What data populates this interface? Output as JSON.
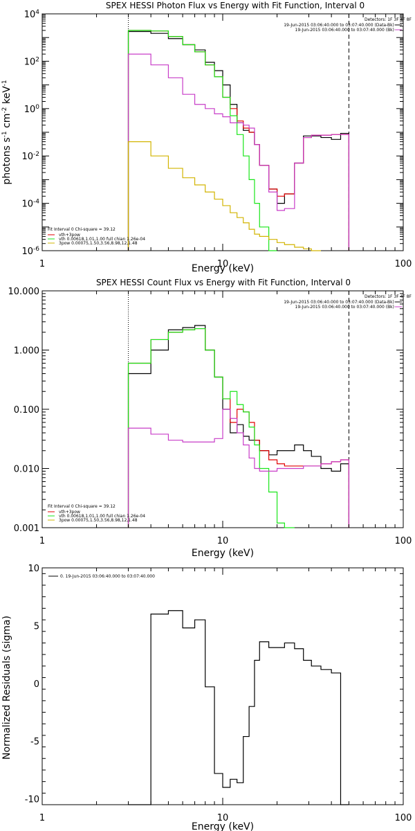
{
  "figure": {
    "colors": {
      "black": "#000000",
      "green": "#19e619",
      "magenta": "#c83cc8",
      "gold": "#d2b400",
      "red": "#e00000",
      "white": "#ffffff"
    }
  },
  "chart_data": [
    {
      "type": "line",
      "title": "SPEX HESSI Photon Flux vs Energy with Fit Function, Interval 0",
      "xlabel": "Energy (keV)",
      "ylabel": "photons s^-1 cm^-2 keV^-1",
      "xscale": "log",
      "yscale": "log",
      "xlim": [
        1,
        100
      ],
      "ylim": [
        1e-06,
        10000.0
      ],
      "x_ticks": [
        {
          "v": 1,
          "label": "1"
        },
        {
          "v": 10,
          "label": "10"
        },
        {
          "v": 100,
          "label": "100"
        }
      ],
      "y_ticks": [
        {
          "v": 1e-06,
          "base": "10",
          "exp": "-6"
        },
        {
          "v": 0.0001,
          "base": "10",
          "exp": "-4"
        },
        {
          "v": 0.01,
          "base": "10",
          "exp": "-2"
        },
        {
          "v": 1,
          "base": "10",
          "exp": "0"
        },
        {
          "v": 100,
          "base": "10",
          "exp": "2"
        },
        {
          "v": 10000.0,
          "base": "10",
          "exp": "4"
        }
      ],
      "vlines": [
        {
          "x": 3,
          "style": "dotted"
        },
        {
          "x": 50,
          "style": "dashed"
        }
      ],
      "bin_edges": [
        3,
        4,
        5,
        6,
        7,
        8,
        9,
        10,
        11,
        12,
        13,
        14,
        15,
        16,
        18,
        20,
        22,
        25,
        28,
        31,
        35,
        40,
        45,
        50
      ],
      "series": [
        {
          "name": "Data",
          "color": "#000000",
          "values": [
            1800,
            1500,
            900,
            500,
            300,
            90,
            40,
            10,
            1.5,
            0.25,
            0.12,
            0.1,
            0.03,
            0.004,
            0.0004,
            0.0001,
            0.00025,
            0.005,
            0.07,
            0.07,
            0.06,
            0.05,
            0.09
          ]
        },
        {
          "name": "vth+3pow",
          "color": "#e00000",
          "values": [
            2000,
            1900,
            1100,
            500,
            250,
            70,
            22,
            3,
            1,
            0.3,
            0.15,
            0.1,
            0.03,
            0.004,
            0.0004,
            0.0002,
            0.00025,
            0.005,
            0.06,
            0.075,
            0.075,
            0.08,
            0.08
          ]
        },
        {
          "name": "vth 0.00618,1.01,1.00  full chian 1.26e-04",
          "color": "#19e619",
          "values": [
            2000,
            1900,
            1100,
            500,
            250,
            70,
            22,
            3,
            0.5,
            0.08,
            0.01,
            0.001,
            0.0001,
            1e-05,
            1e-06
          ]
        },
        {
          "name": "",
          "color": "#c83cc8",
          "values": [
            200,
            70,
            20,
            4,
            1.5,
            1.0,
            0.6,
            0.45,
            0.25,
            0.25,
            0.2,
            0.15,
            0.03,
            0.004,
            0.0003,
            5e-05,
            6e-05,
            0.005,
            0.06,
            0.075,
            0.075,
            0.08,
            0.08
          ]
        },
        {
          "name": "3pow 0.00075,1.50,3.56,8.98,12,1.48",
          "color": "#d2b400",
          "values": [
            0.04,
            0.01,
            0.003,
            0.0012,
            0.0006,
            0.0003,
            0.00015,
            8e-05,
            4e-05,
            2.5e-05,
            1.5e-05,
            8e-06,
            5e-06,
            4e-06,
            3e-06,
            2.2e-06,
            1.8e-06,
            1.4e-06,
            1.2e-06,
            1e-06
          ]
        }
      ],
      "legend": {
        "placement": "top-right",
        "header": "Detectors: 1F 3F 4F 8F",
        "entries": [
          {
            "text": "19-Jun-2015 03:06:40.000 to 03:07:40.000 (Data-Bk)",
            "color": "#000000"
          },
          {
            "text": "19-Jun-2015 03:06:40.000 to 03:07:40.000 (Bk)",
            "color": "#c83cc8"
          }
        ]
      },
      "fit_legend": {
        "placement": "bottom-left",
        "header": "Fit Interval  0    Chi-square = 39.12",
        "entries": [
          {
            "text": "vth+3pow",
            "color": "#e00000"
          },
          {
            "text": "vth 0.00618,1.01,1.00  full chian 1.26e-04",
            "color": "#19e619"
          },
          {
            "text": "3pow 0.00075,1.50,3.56,8.98,12,1.48",
            "color": "#d2b400"
          }
        ]
      }
    },
    {
      "type": "line",
      "title": "SPEX HESSI Count Flux vs Energy with Fit Function, Interval 0",
      "xlabel": "Energy (keV)",
      "ylabel": "",
      "xscale": "log",
      "yscale": "log",
      "xlim": [
        1,
        100
      ],
      "ylim": [
        0.001,
        10
      ],
      "x_ticks": [
        {
          "v": 1,
          "label": "1"
        },
        {
          "v": 10,
          "label": "10"
        },
        {
          "v": 100,
          "label": "100"
        }
      ],
      "y_ticks": [
        {
          "v": 0.001,
          "label": "0.001"
        },
        {
          "v": 0.01,
          "label": "0.010"
        },
        {
          "v": 0.1,
          "label": "0.100"
        },
        {
          "v": 1,
          "label": "1.000"
        },
        {
          "v": 10,
          "label": "10.000"
        }
      ],
      "vlines": [
        {
          "x": 3,
          "style": "dotted"
        },
        {
          "x": 50,
          "style": "dashed"
        }
      ],
      "bin_edges": [
        3,
        4,
        5,
        6,
        7,
        8,
        9,
        10,
        11,
        12,
        13,
        14,
        15,
        16,
        18,
        20,
        22,
        25,
        28,
        31,
        35,
        40,
        45,
        50
      ],
      "series": [
        {
          "name": "Data",
          "color": "#000000",
          "values": [
            0.4,
            1.0,
            2.2,
            2.4,
            2.6,
            1.0,
            0.35,
            0.1,
            0.04,
            0.055,
            0.035,
            0.03,
            0.03,
            0.02,
            0.017,
            0.02,
            0.02,
            0.025,
            0.02,
            0.016,
            0.01,
            0.009,
            0.012
          ]
        },
        {
          "name": "vth+3pow",
          "color": "#e00000",
          "values": [
            0.6,
            1.5,
            2.0,
            2.2,
            2.3,
            1.0,
            0.35,
            0.15,
            0.06,
            0.1,
            0.09,
            0.06,
            0.03,
            0.02,
            0.014,
            0.012,
            0.011,
            0.011,
            0.011,
            0.011,
            0.012,
            0.013,
            0.014
          ]
        },
        {
          "name": "vth",
          "color": "#19e619",
          "values": [
            0.6,
            1.5,
            2.0,
            2.2,
            2.3,
            1.0,
            0.35,
            0.15,
            0.2,
            0.12,
            0.09,
            0.05,
            0.025,
            0.01,
            0.004,
            0.0012,
            0.0003
          ]
        },
        {
          "name": "",
          "color": "#c83cc8",
          "values": [
            0.048,
            0.038,
            0.03,
            0.028,
            0.028,
            0.028,
            0.032,
            0.1,
            0.07,
            0.04,
            0.025,
            0.015,
            0.01,
            0.009,
            0.009,
            0.01,
            0.01,
            0.01,
            0.011,
            0.011,
            0.012,
            0.013,
            0.014
          ]
        }
      ],
      "legend": {
        "placement": "top-right",
        "header": "Detectors: 1F 3F 4F 8F",
        "entries": [
          {
            "text": "19-Jun-2015 03:06:40.000 to 03:07:40.000 (Data-Bk)",
            "color": "#000000"
          },
          {
            "text": "19-Jun-2015 03:06:40.000 to 03:07:40.000 (Bk)",
            "color": "#c83cc8"
          }
        ]
      },
      "fit_legend": {
        "placement": "bottom-left",
        "header": "Fit Interval  0    Chi-square = 39.12",
        "entries": [
          {
            "text": "vth+3pow",
            "color": "#e00000"
          },
          {
            "text": "vth 0.00618,1.01,1.00  full chian 1.26e-04",
            "color": "#19e619"
          },
          {
            "text": "3pow 0.00075,1.50,3.56,8.98,12,1.48",
            "color": "#d2b400"
          }
        ]
      }
    },
    {
      "type": "line",
      "title": "",
      "xlabel": "Energy (keV)",
      "ylabel": "Normalized Residuals (sigma)",
      "xscale": "log",
      "yscale": "linear",
      "xlim": [
        1,
        100
      ],
      "ylim": [
        -10.5,
        10
      ],
      "x_ticks": [
        {
          "v": 1,
          "label": "1"
        },
        {
          "v": 10,
          "label": "10"
        },
        {
          "v": 100,
          "label": "100"
        }
      ],
      "y_ticks": [
        {
          "v": -10,
          "label": "-10"
        },
        {
          "v": -5,
          "label": "-5"
        },
        {
          "v": 0,
          "label": "0"
        },
        {
          "v": 5,
          "label": "5"
        },
        {
          "v": 10,
          "label": "10"
        }
      ],
      "bin_edges": [
        3,
        4,
        5,
        6,
        7,
        8,
        9,
        10,
        11,
        12,
        13,
        14,
        15,
        16,
        18,
        20,
        22,
        25,
        28,
        31,
        35,
        40,
        45,
        50
      ],
      "series": [
        {
          "name": "",
          "color": "#000000",
          "values": [
            -10.5,
            6.0,
            6.3,
            4.8,
            5.5,
            -0.3,
            -7.8,
            -9.0,
            -8.3,
            -8.6,
            -4.6,
            -2.0,
            2.0,
            3.6,
            3.1,
            3.1,
            3.5,
            3.0,
            2.0,
            1.5,
            1.2,
            0.9,
            -10.5
          ]
        }
      ],
      "legend": {
        "placement": "top-left",
        "entries": [
          {
            "text": "0. 19-Jun-2015 03:06:40.000 to 03:07:40.000",
            "color": "#000000"
          }
        ]
      }
    }
  ]
}
